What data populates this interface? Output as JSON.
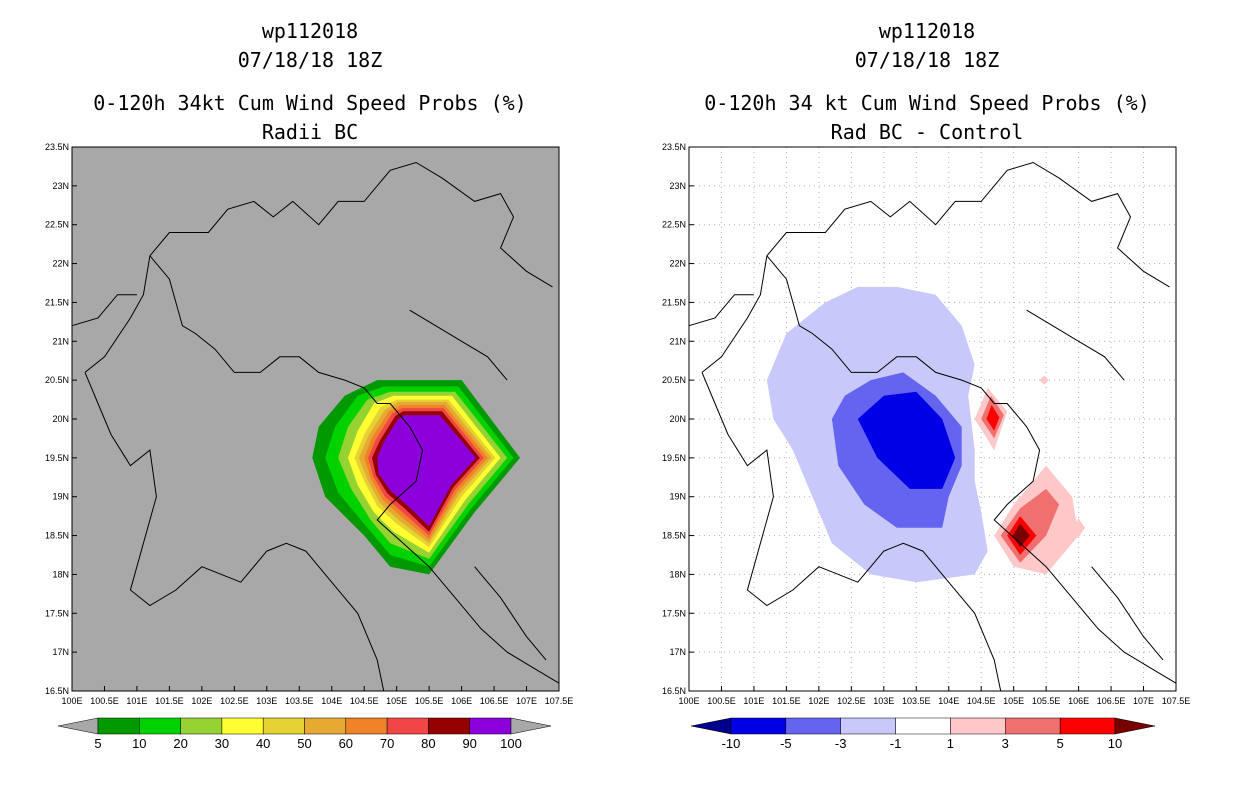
{
  "chart_data": [
    {
      "type": "heatmap",
      "title_lines": [
        "wp112018",
        "07/18/18 18Z",
        "0-120h 34kt Cum Wind Speed Probs (%)",
        "Radii BC"
      ],
      "xlabel": "",
      "ylabel": "",
      "xlim": [
        100,
        107.5
      ],
      "ylim": [
        16.5,
        23.5
      ],
      "x_tick_labels": [
        "100E",
        "100.5E",
        "101E",
        "101.5E",
        "102E",
        "102.5E",
        "103E",
        "103.5E",
        "104E",
        "104.5E",
        "105E",
        "105.5E",
        "106E",
        "106.5E",
        "107E",
        "107.5E"
      ],
      "y_tick_labels": [
        "16.5N",
        "17N",
        "17.5N",
        "18N",
        "18.5N",
        "19N",
        "19.5N",
        "20N",
        "20.5N",
        "21N",
        "21.5N",
        "22N",
        "22.5N",
        "23N",
        "23.5N"
      ],
      "grid": false,
      "background": "#a8a8a8",
      "colorbar": {
        "labels": [
          "5",
          "10",
          "20",
          "30",
          "40",
          "50",
          "60",
          "70",
          "80",
          "90",
          "100"
        ],
        "colors": [
          "#009900",
          "#00d200",
          "#96d232",
          "#ffff32",
          "#e6d232",
          "#e6aa32",
          "#f08228",
          "#f04646",
          "#960000",
          "#8c00dc"
        ],
        "end_colors": [
          "#a8a8a8",
          "#a8a8a8"
        ]
      },
      "levels": [
        {
          "value": 5,
          "color": "#009900",
          "poly": [
            [
              103.7,
              19.5
            ],
            [
              103.8,
              19.9
            ],
            [
              104.2,
              20.3
            ],
            [
              104.7,
              20.5
            ],
            [
              106.0,
              20.5
            ],
            [
              106.9,
              19.5
            ],
            [
              106.2,
              18.8
            ],
            [
              105.5,
              18.0
            ],
            [
              104.9,
              18.1
            ],
            [
              104.5,
              18.5
            ],
            [
              103.9,
              19.0
            ]
          ]
        },
        {
          "value": 10,
          "color": "#00d200",
          "poly": [
            [
              103.9,
              19.5
            ],
            [
              104.05,
              19.9
            ],
            [
              104.4,
              20.3
            ],
            [
              104.8,
              20.42
            ],
            [
              105.95,
              20.42
            ],
            [
              106.8,
              19.5
            ],
            [
              106.15,
              18.85
            ],
            [
              105.5,
              18.1
            ],
            [
              104.9,
              18.25
            ],
            [
              104.55,
              18.6
            ],
            [
              104.1,
              19.05
            ]
          ]
        },
        {
          "value": 20,
          "color": "#96d232",
          "poly": [
            [
              104.1,
              19.5
            ],
            [
              104.25,
              19.9
            ],
            [
              104.55,
              20.25
            ],
            [
              104.9,
              20.35
            ],
            [
              105.9,
              20.35
            ],
            [
              106.7,
              19.5
            ],
            [
              106.1,
              18.9
            ],
            [
              105.5,
              18.2
            ],
            [
              104.9,
              18.4
            ],
            [
              104.6,
              18.7
            ],
            [
              104.3,
              19.1
            ]
          ]
        },
        {
          "value": 30,
          "color": "#ffff32",
          "poly": [
            [
              104.25,
              19.5
            ],
            [
              104.4,
              19.85
            ],
            [
              104.65,
              20.2
            ],
            [
              104.95,
              20.3
            ],
            [
              105.85,
              20.3
            ],
            [
              106.6,
              19.5
            ],
            [
              106.05,
              18.95
            ],
            [
              105.5,
              18.28
            ],
            [
              104.95,
              18.55
            ],
            [
              104.65,
              18.8
            ],
            [
              104.4,
              19.15
            ]
          ]
        },
        {
          "value": 40,
          "color": "#e6d232",
          "poly": [
            [
              104.35,
              19.5
            ],
            [
              104.5,
              19.8
            ],
            [
              104.75,
              20.15
            ],
            [
              105.0,
              20.25
            ],
            [
              105.8,
              20.25
            ],
            [
              106.52,
              19.5
            ],
            [
              106.0,
              19.0
            ],
            [
              105.5,
              18.35
            ],
            [
              105.0,
              18.65
            ],
            [
              104.7,
              18.88
            ],
            [
              104.5,
              19.2
            ]
          ]
        },
        {
          "value": 50,
          "color": "#e6aa32",
          "poly": [
            [
              104.42,
              19.5
            ],
            [
              104.56,
              19.78
            ],
            [
              104.82,
              20.12
            ],
            [
              105.03,
              20.22
            ],
            [
              105.77,
              20.22
            ],
            [
              106.46,
              19.5
            ],
            [
              105.96,
              19.03
            ],
            [
              105.5,
              18.4
            ],
            [
              105.03,
              18.7
            ],
            [
              104.74,
              18.92
            ],
            [
              104.55,
              19.22
            ]
          ]
        },
        {
          "value": 60,
          "color": "#f08228",
          "poly": [
            [
              104.5,
              19.5
            ],
            [
              104.62,
              19.76
            ],
            [
              104.88,
              20.1
            ],
            [
              105.06,
              20.18
            ],
            [
              105.74,
              20.18
            ],
            [
              106.4,
              19.5
            ],
            [
              105.93,
              19.06
            ],
            [
              105.5,
              18.45
            ],
            [
              105.06,
              18.75
            ],
            [
              104.78,
              18.96
            ],
            [
              104.6,
              19.24
            ]
          ]
        },
        {
          "value": 70,
          "color": "#f04646",
          "poly": [
            [
              104.56,
              19.5
            ],
            [
              104.68,
              19.74
            ],
            [
              104.93,
              20.07
            ],
            [
              105.08,
              20.14
            ],
            [
              105.72,
              20.14
            ],
            [
              106.34,
              19.5
            ],
            [
              105.9,
              19.09
            ],
            [
              105.5,
              18.5
            ],
            [
              105.09,
              18.8
            ],
            [
              104.82,
              19.0
            ],
            [
              104.64,
              19.26
            ]
          ]
        },
        {
          "value": 80,
          "color": "#960000",
          "poly": [
            [
              104.62,
              19.5
            ],
            [
              104.74,
              19.72
            ],
            [
              104.98,
              20.04
            ],
            [
              105.1,
              20.1
            ],
            [
              105.7,
              20.1
            ],
            [
              106.28,
              19.5
            ],
            [
              105.87,
              19.12
            ],
            [
              105.5,
              18.55
            ],
            [
              105.12,
              18.85
            ],
            [
              104.86,
              19.04
            ],
            [
              104.68,
              19.28
            ]
          ]
        },
        {
          "value": 90,
          "color": "#8c00dc",
          "poly": [
            [
              104.7,
              19.5
            ],
            [
              104.8,
              19.7
            ],
            [
              105.02,
              20.0
            ],
            [
              105.12,
              20.05
            ],
            [
              105.66,
              20.05
            ],
            [
              106.22,
              19.5
            ],
            [
              105.84,
              19.15
            ],
            [
              105.5,
              18.62
            ],
            [
              105.15,
              18.9
            ],
            [
              104.9,
              19.08
            ],
            [
              104.72,
              19.3
            ]
          ]
        }
      ]
    },
    {
      "type": "heatmap",
      "title_lines": [
        "wp112018",
        "07/18/18 18Z",
        "0-120h 34 kt Cum Wind Speed Probs (%)",
        "Rad BC - Control"
      ],
      "xlabel": "",
      "ylabel": "",
      "xlim": [
        100,
        107.5
      ],
      "ylim": [
        16.5,
        23.5
      ],
      "x_tick_labels": [
        "100E",
        "100.5E",
        "101E",
        "101.5E",
        "102E",
        "102.5E",
        "103E",
        "103.5E",
        "104E",
        "104.5E",
        "105E",
        "105.5E",
        "106E",
        "106.5E",
        "107E",
        "107.5E"
      ],
      "y_tick_labels": [
        "16.5N",
        "17N",
        "17.5N",
        "18N",
        "18.5N",
        "19N",
        "19.5N",
        "20N",
        "20.5N",
        "21N",
        "21.5N",
        "22N",
        "22.5N",
        "23N",
        "23.5N"
      ],
      "grid": true,
      "background": "#ffffff",
      "colorbar": {
        "labels": [
          "-10",
          "-5",
          "-3",
          "-1",
          "1",
          "3",
          "5",
          "10"
        ],
        "colors": [
          "#0000e6",
          "#6464f0",
          "#c8c8fa",
          "#ffffff",
          "#ffc8c8",
          "#f07070",
          "#ff0000"
        ],
        "end_colors": [
          "#00008c",
          "#780000"
        ]
      },
      "levels": [
        {
          "value": -1,
          "color": "#c8c8fa",
          "poly": [
            [
              101.2,
              20.5
            ],
            [
              101.5,
              21.1
            ],
            [
              102.1,
              21.5
            ],
            [
              102.6,
              21.7
            ],
            [
              103.2,
              21.7
            ],
            [
              103.8,
              21.6
            ],
            [
              104.2,
              21.2
            ],
            [
              104.4,
              20.7
            ],
            [
              104.3,
              20.3
            ],
            [
              104.4,
              19.6
            ],
            [
              104.4,
              19.2
            ],
            [
              104.5,
              18.8
            ],
            [
              104.6,
              18.3
            ],
            [
              104.4,
              18.0
            ],
            [
              103.5,
              17.9
            ],
            [
              102.8,
              18.0
            ],
            [
              102.2,
              18.4
            ],
            [
              101.9,
              19.0
            ],
            [
              101.6,
              19.6
            ],
            [
              101.3,
              20.0
            ]
          ]
        },
        {
          "value": -3,
          "color": "#6464f0",
          "poly": [
            [
              102.2,
              20.0
            ],
            [
              102.4,
              20.3
            ],
            [
              102.8,
              20.5
            ],
            [
              103.3,
              20.6
            ],
            [
              103.8,
              20.3
            ],
            [
              104.2,
              19.9
            ],
            [
              104.2,
              19.4
            ],
            [
              104.0,
              19.0
            ],
            [
              103.9,
              18.6
            ],
            [
              103.2,
              18.6
            ],
            [
              102.7,
              18.9
            ],
            [
              102.3,
              19.4
            ]
          ]
        },
        {
          "value": -5,
          "color": "#0000e6",
          "poly": [
            [
              102.6,
              20.0
            ],
            [
              103.0,
              20.3
            ],
            [
              103.5,
              20.35
            ],
            [
              103.9,
              20.0
            ],
            [
              104.1,
              19.5
            ],
            [
              103.9,
              19.1
            ],
            [
              103.4,
              19.1
            ],
            [
              102.9,
              19.5
            ]
          ]
        },
        {
          "value": 1,
          "color": "#ffc8c8",
          "poly": [
            [
              104.4,
              20.0
            ],
            [
              104.6,
              20.4
            ],
            [
              104.9,
              20.1
            ],
            [
              104.7,
              19.6
            ]
          ]
        },
        {
          "value": 3,
          "color": "#f07070",
          "poly": [
            [
              104.5,
              20.0
            ],
            [
              104.65,
              20.3
            ],
            [
              104.85,
              20.05
            ],
            [
              104.7,
              19.75
            ]
          ]
        },
        {
          "value": 5,
          "color": "#ff0000",
          "poly": [
            [
              104.58,
              20.0
            ],
            [
              104.66,
              20.18
            ],
            [
              104.78,
              20.02
            ],
            [
              104.7,
              19.85
            ]
          ]
        },
        {
          "value": 1,
          "color": "#ffc8c8",
          "poly": [
            [
              104.7,
              18.5
            ],
            [
              105.0,
              18.9
            ],
            [
              105.5,
              19.4
            ],
            [
              105.9,
              19.0
            ],
            [
              106.0,
              18.5
            ],
            [
              105.5,
              18.0
            ],
            [
              105.0,
              18.1
            ]
          ]
        },
        {
          "value": 3,
          "color": "#f07070",
          "poly": [
            [
              104.8,
              18.5
            ],
            [
              105.1,
              18.85
            ],
            [
              105.5,
              19.1
            ],
            [
              105.7,
              18.9
            ],
            [
              105.5,
              18.5
            ],
            [
              105.1,
              18.15
            ]
          ]
        },
        {
          "value": 5,
          "color": "#ff0000",
          "poly": [
            [
              104.9,
              18.5
            ],
            [
              105.1,
              18.75
            ],
            [
              105.35,
              18.5
            ],
            [
              105.1,
              18.25
            ]
          ]
        },
        {
          "value": 10,
          "color": "#780000",
          "poly": [
            [
              104.98,
              18.5
            ],
            [
              105.1,
              18.65
            ],
            [
              105.25,
              18.5
            ],
            [
              105.1,
              18.35
            ]
          ]
        },
        {
          "value": 1,
          "color": "#ffc8c8",
          "poly": [
            [
              105.4,
              20.5
            ],
            [
              105.47,
              20.56
            ],
            [
              105.54,
              20.5
            ],
            [
              105.47,
              20.44
            ]
          ]
        },
        {
          "value": 1,
          "color": "#ffc8c8",
          "poly": [
            [
              105.9,
              18.6
            ],
            [
              106.0,
              18.72
            ],
            [
              106.1,
              18.6
            ],
            [
              106.0,
              18.48
            ]
          ]
        }
      ]
    }
  ]
}
